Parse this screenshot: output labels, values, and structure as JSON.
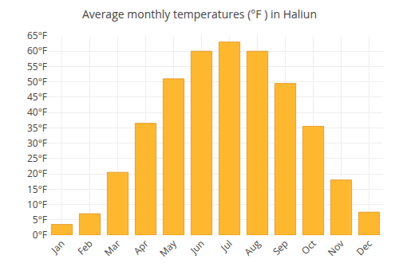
{
  "chart_data": {
    "type": "bar",
    "title": "Average monthly temperatures (°F ) in Haliun",
    "categories": [
      "Jan",
      "Feb",
      "Mar",
      "Apr",
      "May",
      "Jun",
      "Jul",
      "Aug",
      "Sep",
      "Oct",
      "Nov",
      "Dec"
    ],
    "values": [
      3.5,
      7.0,
      20.5,
      36.5,
      51.0,
      60.0,
      63.0,
      60.0,
      49.5,
      35.5,
      18.0,
      7.5
    ],
    "color": "#FDB830",
    "ylim": [
      0,
      65
    ],
    "yticks": [
      {
        "value": 0,
        "label": "0°F"
      },
      {
        "value": 5,
        "label": "5°F"
      },
      {
        "value": 10,
        "label": "10°F"
      },
      {
        "value": 15,
        "label": "15°F"
      },
      {
        "value": 20,
        "label": "20°F"
      },
      {
        "value": 25,
        "label": "25°F"
      },
      {
        "value": 30,
        "label": "30°F"
      },
      {
        "value": 35,
        "label": "35°F"
      },
      {
        "value": 40,
        "label": "40°F"
      },
      {
        "value": 45,
        "label": "45°F"
      },
      {
        "value": 50,
        "label": "50°F"
      },
      {
        "value": 55,
        "label": "55°F"
      },
      {
        "value": 60,
        "label": "60°F"
      },
      {
        "value": 65,
        "label": "65°F"
      }
    ],
    "grid": true
  }
}
